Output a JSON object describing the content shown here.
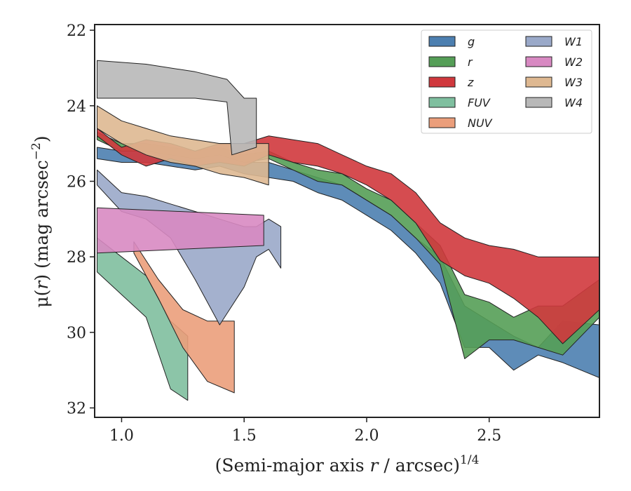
{
  "chart_data": {
    "type": "area",
    "xlabel": "(Semi-major axis r / arcsec)1/4",
    "xlabel_main": "(Semi-major axis ",
    "xlabel_var": "r",
    "xlabel_rest": " / arcsec)",
    "xlabel_sup": "1/4",
    "ylabel": "μ(r) (mag arcsec−2)",
    "ylabel_main": "μ(",
    "ylabel_var": "r",
    "ylabel_rest": ") (mag arcsec",
    "ylabel_sup": "−2",
    "ylabel_close": ")",
    "xlim": [
      0.89,
      2.95
    ],
    "ylim": [
      32.25,
      21.85
    ],
    "y_inverted": true,
    "xticks": [
      1.0,
      1.5,
      2.0,
      2.5
    ],
    "xtick_labels": [
      "1.0",
      "1.5",
      "2.0",
      "2.5"
    ],
    "yticks": [
      22,
      24,
      26,
      28,
      30,
      32
    ],
    "ytick_labels": [
      "22",
      "24",
      "26",
      "28",
      "30",
      "32"
    ],
    "grid": false,
    "legend_position": "top-right",
    "legend_columns": 2,
    "series": [
      {
        "name": "g",
        "color": "#4c7fb0",
        "upper": [
          [
            0.9,
            25.1
          ],
          [
            1.0,
            25.2
          ],
          [
            1.1,
            25.2
          ],
          [
            1.2,
            25.3
          ],
          [
            1.3,
            25.4
          ],
          [
            1.4,
            25.3
          ],
          [
            1.5,
            25.5
          ],
          [
            1.6,
            25.5
          ],
          [
            1.7,
            25.7
          ],
          [
            1.8,
            25.9
          ],
          [
            1.9,
            26.1
          ],
          [
            2.0,
            26.5
          ],
          [
            2.1,
            26.9
          ],
          [
            2.2,
            27.5
          ],
          [
            2.3,
            28.0
          ],
          [
            2.4,
            29.3
          ],
          [
            2.5,
            29.7
          ],
          [
            2.6,
            30.1
          ],
          [
            2.7,
            30.4
          ],
          [
            2.8,
            29.7
          ],
          [
            2.95,
            29.8
          ]
        ],
        "lower": [
          [
            0.9,
            25.4
          ],
          [
            1.0,
            25.5
          ],
          [
            1.1,
            25.5
          ],
          [
            1.2,
            25.6
          ],
          [
            1.3,
            25.7
          ],
          [
            1.4,
            25.6
          ],
          [
            1.5,
            25.8
          ],
          [
            1.6,
            25.9
          ],
          [
            1.7,
            26.0
          ],
          [
            1.8,
            26.3
          ],
          [
            1.9,
            26.5
          ],
          [
            2.0,
            26.9
          ],
          [
            2.1,
            27.3
          ],
          [
            2.2,
            27.9
          ],
          [
            2.3,
            28.7
          ],
          [
            2.4,
            30.4
          ],
          [
            2.5,
            30.4
          ],
          [
            2.6,
            31.0
          ],
          [
            2.7,
            30.6
          ],
          [
            2.8,
            30.8
          ],
          [
            2.95,
            31.2
          ]
        ]
      },
      {
        "name": "r",
        "color": "#559e57",
        "upper": [
          [
            0.9,
            24.7
          ],
          [
            1.0,
            25.0
          ],
          [
            1.1,
            25.0
          ],
          [
            1.2,
            25.1
          ],
          [
            1.3,
            25.2
          ],
          [
            1.4,
            25.1
          ],
          [
            1.5,
            25.3
          ],
          [
            1.6,
            25.2
          ],
          [
            1.7,
            25.5
          ],
          [
            1.8,
            25.7
          ],
          [
            1.9,
            25.8
          ],
          [
            2.0,
            26.2
          ],
          [
            2.1,
            26.5
          ],
          [
            2.2,
            27.1
          ],
          [
            2.3,
            27.7
          ],
          [
            2.4,
            29.0
          ],
          [
            2.5,
            29.2
          ],
          [
            2.6,
            29.6
          ],
          [
            2.7,
            29.3
          ],
          [
            2.8,
            29.3
          ],
          [
            2.95,
            28.6
          ]
        ],
        "lower": [
          [
            0.9,
            24.9
          ],
          [
            1.0,
            25.2
          ],
          [
            1.1,
            25.2
          ],
          [
            1.2,
            25.3
          ],
          [
            1.3,
            25.4
          ],
          [
            1.4,
            25.3
          ],
          [
            1.5,
            25.5
          ],
          [
            1.6,
            25.4
          ],
          [
            1.7,
            25.7
          ],
          [
            1.8,
            26.0
          ],
          [
            1.9,
            26.1
          ],
          [
            2.0,
            26.5
          ],
          [
            2.1,
            26.9
          ],
          [
            2.2,
            27.5
          ],
          [
            2.3,
            28.2
          ],
          [
            2.4,
            30.7
          ],
          [
            2.5,
            30.2
          ],
          [
            2.6,
            30.2
          ],
          [
            2.7,
            30.4
          ],
          [
            2.8,
            30.6
          ],
          [
            2.95,
            29.6
          ]
        ]
      },
      {
        "name": "z",
        "color": "#d0383d",
        "upper": [
          [
            0.9,
            24.6
          ],
          [
            1.0,
            25.1
          ],
          [
            1.1,
            24.9
          ],
          [
            1.2,
            25.0
          ],
          [
            1.3,
            25.2
          ],
          [
            1.4,
            25.0
          ],
          [
            1.5,
            25.0
          ],
          [
            1.6,
            24.8
          ],
          [
            1.7,
            24.9
          ],
          [
            1.8,
            25.0
          ],
          [
            1.9,
            25.3
          ],
          [
            2.0,
            25.6
          ],
          [
            2.1,
            25.8
          ],
          [
            2.2,
            26.3
          ],
          [
            2.3,
            27.1
          ],
          [
            2.4,
            27.5
          ],
          [
            2.5,
            27.7
          ],
          [
            2.6,
            27.8
          ],
          [
            2.7,
            28.0
          ],
          [
            2.8,
            28.0
          ],
          [
            2.95,
            28.0
          ]
        ],
        "lower": [
          [
            0.9,
            24.8
          ],
          [
            1.0,
            25.3
          ],
          [
            1.1,
            25.6
          ],
          [
            1.2,
            25.4
          ],
          [
            1.3,
            25.6
          ],
          [
            1.4,
            25.5
          ],
          [
            1.5,
            25.6
          ],
          [
            1.6,
            25.3
          ],
          [
            1.7,
            25.5
          ],
          [
            1.8,
            25.6
          ],
          [
            1.9,
            25.8
          ],
          [
            2.0,
            26.1
          ],
          [
            2.1,
            26.5
          ],
          [
            2.2,
            27.1
          ],
          [
            2.3,
            28.1
          ],
          [
            2.4,
            28.5
          ],
          [
            2.5,
            28.7
          ],
          [
            2.6,
            29.1
          ],
          [
            2.7,
            29.6
          ],
          [
            2.8,
            30.3
          ],
          [
            2.95,
            29.4
          ]
        ]
      },
      {
        "name": "FUV",
        "color": "#7fbf9f",
        "upper": [
          [
            0.9,
            27.5
          ],
          [
            1.0,
            28.0
          ],
          [
            1.1,
            28.5
          ],
          [
            1.2,
            29.7
          ],
          [
            1.27,
            30.1
          ]
        ],
        "lower": [
          [
            0.9,
            28.4
          ],
          [
            1.0,
            29.0
          ],
          [
            1.1,
            29.6
          ],
          [
            1.2,
            31.5
          ],
          [
            1.27,
            31.8
          ]
        ]
      },
      {
        "name": "NUV",
        "color": "#eb9e7b",
        "upper": [
          [
            1.05,
            27.6
          ],
          [
            1.15,
            28.6
          ],
          [
            1.25,
            29.4
          ],
          [
            1.35,
            29.7
          ],
          [
            1.46,
            29.7
          ]
        ],
        "lower": [
          [
            1.05,
            27.9
          ],
          [
            1.15,
            29.1
          ],
          [
            1.25,
            30.4
          ],
          [
            1.35,
            31.3
          ],
          [
            1.46,
            31.6
          ]
        ]
      },
      {
        "name": "W1",
        "color": "#9aa9c9",
        "upper": [
          [
            0.9,
            25.7
          ],
          [
            1.0,
            26.3
          ],
          [
            1.1,
            26.4
          ],
          [
            1.2,
            26.6
          ],
          [
            1.3,
            26.8
          ],
          [
            1.4,
            27.0
          ],
          [
            1.5,
            27.2
          ],
          [
            1.55,
            27.2
          ],
          [
            1.6,
            27.0
          ],
          [
            1.65,
            27.2
          ]
        ],
        "lower": [
          [
            0.9,
            26.1
          ],
          [
            1.0,
            26.8
          ],
          [
            1.1,
            27.0
          ],
          [
            1.2,
            27.5
          ],
          [
            1.3,
            28.6
          ],
          [
            1.4,
            29.8
          ],
          [
            1.5,
            28.8
          ],
          [
            1.55,
            28.0
          ],
          [
            1.6,
            27.8
          ],
          [
            1.65,
            28.3
          ]
        ]
      },
      {
        "name": "W2",
        "color": "#d889c2",
        "upper": [
          [
            0.9,
            26.7
          ],
          [
            1.58,
            26.9
          ]
        ],
        "lower": [
          [
            0.9,
            27.9
          ],
          [
            1.58,
            27.7
          ]
        ]
      },
      {
        "name": "W3",
        "color": "#deb891",
        "upper": [
          [
            0.9,
            24.0
          ],
          [
            1.0,
            24.4
          ],
          [
            1.1,
            24.6
          ],
          [
            1.2,
            24.8
          ],
          [
            1.3,
            24.9
          ],
          [
            1.4,
            25.0
          ],
          [
            1.5,
            25.0
          ],
          [
            1.6,
            25.0
          ]
        ],
        "lower": [
          [
            0.9,
            24.6
          ],
          [
            1.0,
            25.0
          ],
          [
            1.1,
            25.3
          ],
          [
            1.2,
            25.5
          ],
          [
            1.3,
            25.6
          ],
          [
            1.4,
            25.8
          ],
          [
            1.5,
            25.9
          ],
          [
            1.6,
            26.1
          ]
        ]
      },
      {
        "name": "W4",
        "color": "#b8b8b8",
        "upper": [
          [
            0.9,
            22.8
          ],
          [
            1.1,
            22.9
          ],
          [
            1.3,
            23.1
          ],
          [
            1.43,
            23.3
          ],
          [
            1.5,
            23.8
          ],
          [
            1.55,
            23.8
          ]
        ],
        "lower": [
          [
            0.9,
            23.8
          ],
          [
            1.1,
            23.8
          ],
          [
            1.3,
            23.8
          ],
          [
            1.43,
            23.9
          ],
          [
            1.45,
            25.3
          ],
          [
            1.55,
            25.1
          ]
        ]
      }
    ]
  }
}
